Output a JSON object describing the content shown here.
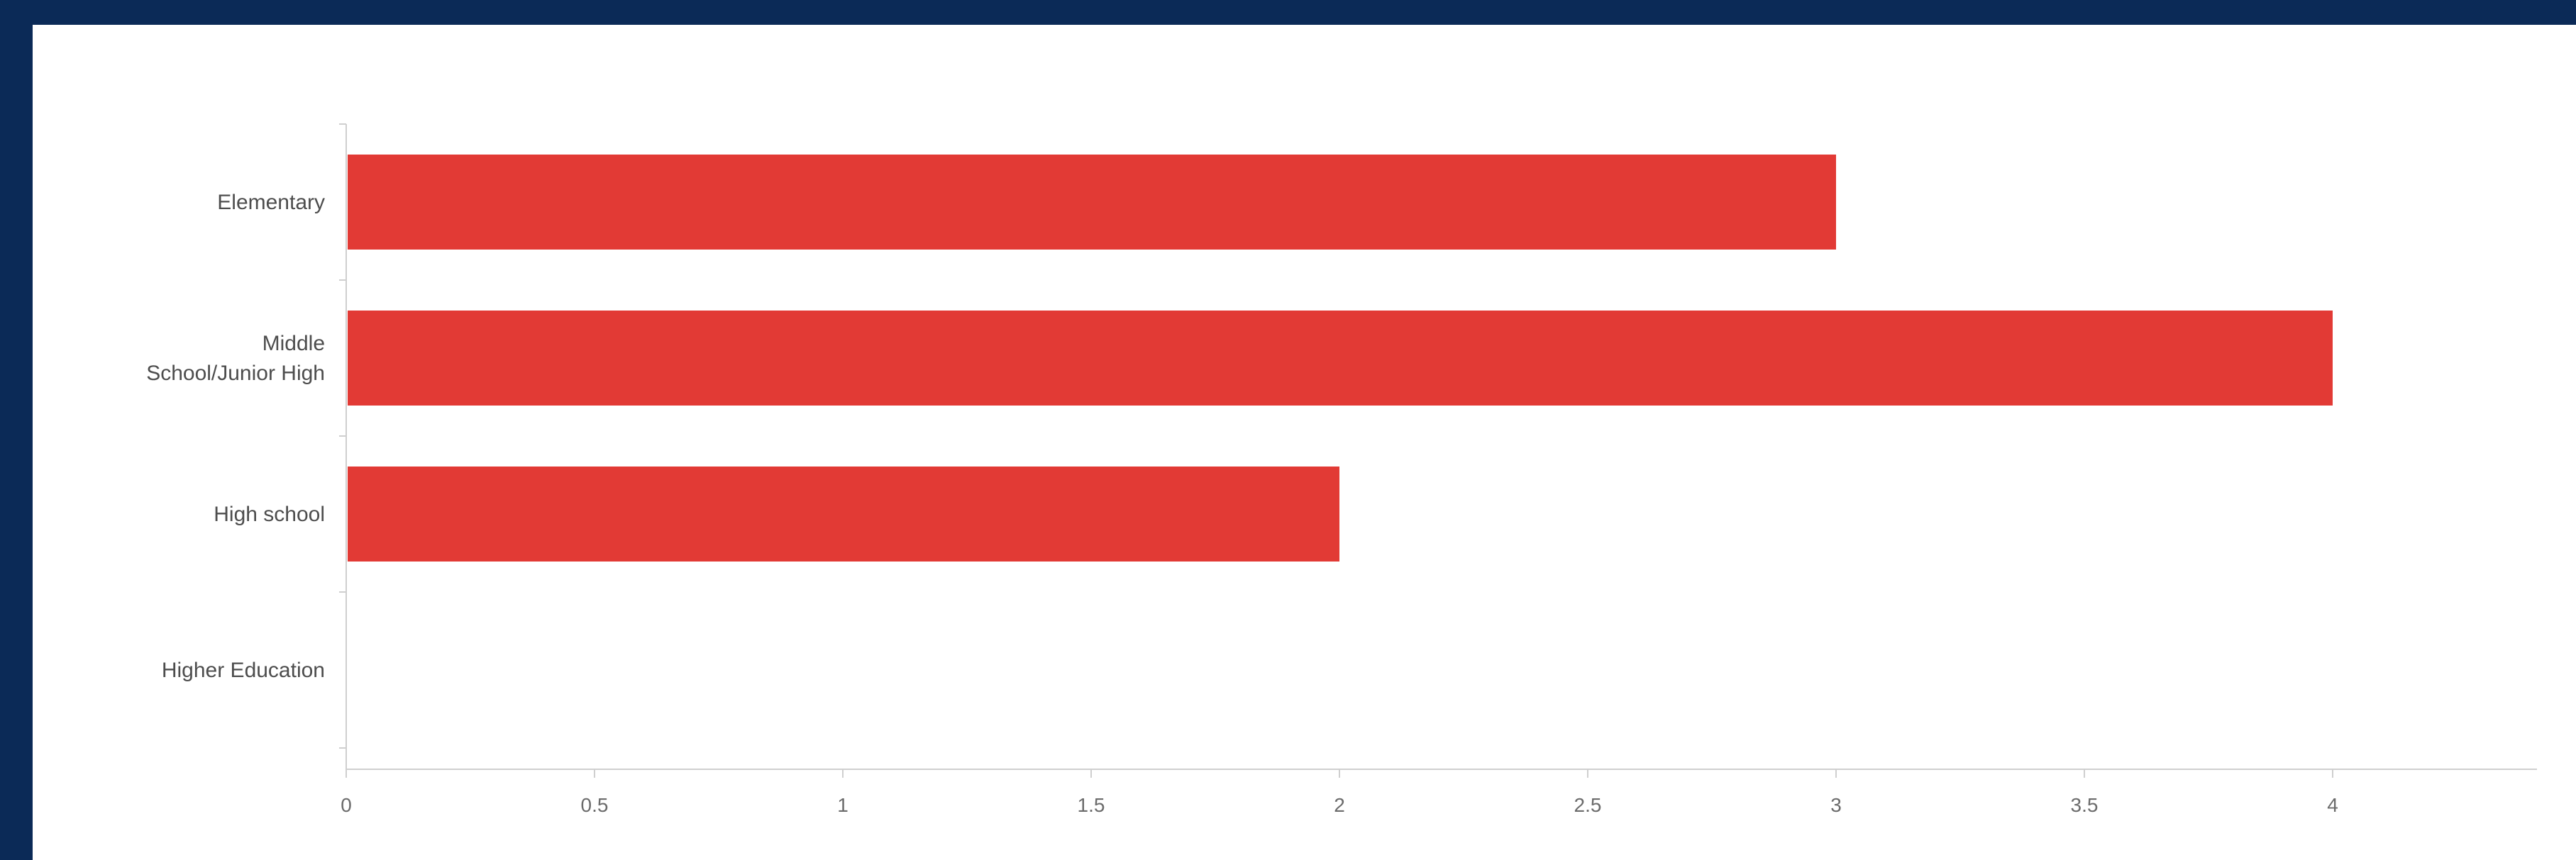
{
  "colors": {
    "frame": "#0b2a57",
    "panel": "#ffffff",
    "bar": "#e23a35",
    "axis": "#cfcfcf",
    "tick_label": "#6b6b6b",
    "category_label": "#4d4d4d"
  },
  "chart_data": {
    "type": "bar",
    "orientation": "horizontal",
    "title": "",
    "xlabel": "",
    "ylabel": "",
    "categories": [
      [
        "Elementary"
      ],
      [
        "Middle",
        "School/Junior High"
      ],
      [
        "High school"
      ],
      [
        "Higher Education"
      ]
    ],
    "values": [
      3,
      4,
      2,
      0
    ],
    "xlim": [
      0,
      4.4
    ],
    "xticks": [
      0,
      0.5,
      1,
      1.5,
      2,
      2.5,
      3,
      3.5,
      4
    ],
    "xtick_labels": [
      "0",
      "0.5",
      "1",
      "1.5",
      "2",
      "2.5",
      "3",
      "3.5",
      "4"
    ],
    "grid": false,
    "legend": "none"
  }
}
